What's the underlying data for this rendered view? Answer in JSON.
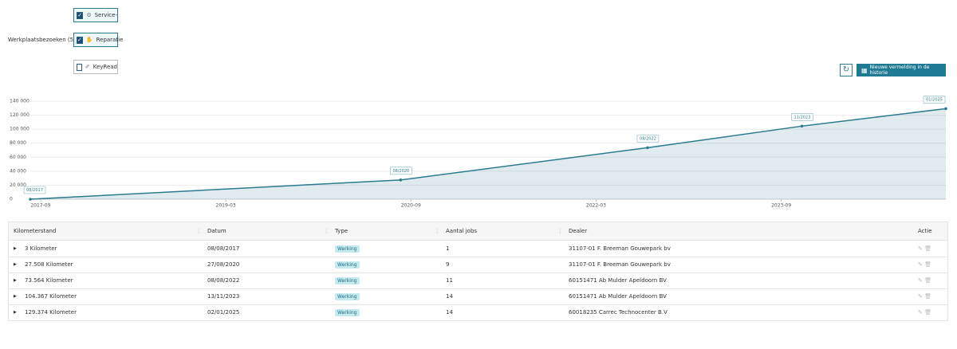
{
  "filters": {
    "label": "Werkplaatsbezoeken (5):",
    "options": [
      {
        "label": "Service-",
        "checked": true
      },
      {
        "label": "Reparatie",
        "checked": true
      },
      {
        "label": "KeyRead",
        "checked": false
      }
    ]
  },
  "button": {
    "label": "Nieuwe vermelding in de historie"
  },
  "chart_data": {
    "type": "area",
    "x": [
      "2017-08",
      "2020-08",
      "2022-08",
      "2023-11",
      "2025-01"
    ],
    "xlim": [
      "2017-08",
      "2025-01"
    ],
    "xticks": [
      "2017-09",
      "2019-03",
      "2020-09",
      "2022-03",
      "2023-09"
    ],
    "ylim": [
      0,
      140000
    ],
    "yticks": [
      0,
      {
        "value": 20000,
        "label": "20 000"
      },
      {
        "value": 40000,
        "label": "40 000"
      },
      {
        "value": 60000,
        "label": "60 000"
      },
      {
        "value": 80000,
        "label": "80 000"
      },
      {
        "value": 100000,
        "label": "100 000"
      },
      {
        "value": 120000,
        "label": "120 000"
      },
      {
        "value": 140000,
        "label": "140 000"
      }
    ],
    "series": [
      {
        "values": [
          3,
          27508,
          73564,
          104367,
          129374
        ],
        "point_labels": [
          "08/2017",
          "08/2020",
          "08/2022",
          "11/2023",
          "01/2025"
        ],
        "color": "#2b7a8e"
      }
    ],
    "grid": true
  },
  "table": {
    "columns": [
      "Kilometerstand",
      "Datum",
      "Type",
      "Aantal jobs",
      "Dealer",
      "Actie"
    ],
    "rows": [
      [
        "3 Kilometer",
        "08/08/2017",
        "Werking",
        "1",
        "31107-01 F. Breeman Gouwepark bv"
      ],
      [
        "27.508 Kilometer",
        "27/08/2020",
        "Werking",
        "9",
        "31107-01 F. Breeman Gouwepark bv"
      ],
      [
        "73.564 Kilometer",
        "08/08/2022",
        "Werking",
        "11",
        "60151471 Ab Mulder Apeldoorn BV"
      ],
      [
        "104.367 Kilometer",
        "13/11/2023",
        "Werking",
        "14",
        "60151471 Ab Mulder Apeldoorn BV"
      ],
      [
        "129.374 Kilometer",
        "02/01/2025",
        "Werking",
        "14",
        "60018235 Carrec Technocenter B.V"
      ]
    ]
  }
}
